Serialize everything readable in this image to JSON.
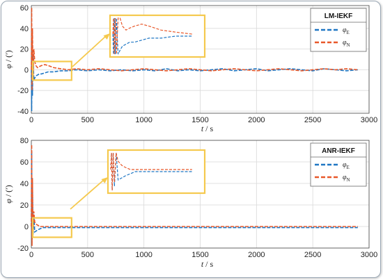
{
  "colors": {
    "E": "#1f77c4",
    "N": "#e8582a",
    "zoom_box": "#f5c94e",
    "grid": "#d9d9d9",
    "axis": "#444444"
  },
  "chart_data": [
    {
      "type": "line",
      "legend_title": "LM-IEKF",
      "legend_position": "top-right",
      "xlabel": {
        "symbol": "t",
        "unit": " / s"
      },
      "ylabel": {
        "symbol": "φ",
        "unit": " / (′)"
      },
      "xlim": [
        0,
        3000
      ],
      "ylim": [
        -42,
        62
      ],
      "xticks": [
        "0",
        "500",
        "1000",
        "1500",
        "2000",
        "2500",
        "3000"
      ],
      "yticks": [
        "-40",
        "-20",
        "0",
        "20",
        "40",
        "60"
      ],
      "grid": true,
      "series": [
        {
          "name": "φE",
          "sym": "φ",
          "sub": "E",
          "x": [
            0,
            3,
            6,
            10,
            15,
            22,
            30,
            40,
            55,
            70,
            90,
            120,
            150,
            200,
            260,
            330,
            400,
            500,
            600,
            700,
            800,
            900,
            1000,
            1100,
            1200,
            1300,
            1400,
            1500,
            1600,
            1700,
            1800,
            1900,
            2000,
            2100,
            2200,
            2300,
            2400,
            2500,
            2600,
            2700,
            2800,
            2900
          ],
          "values": [
            0,
            -40,
            30,
            -25,
            15,
            -10,
            -8,
            -6,
            -5,
            -4,
            -4,
            -3,
            -2,
            -2,
            -1,
            -1,
            0,
            -1,
            0,
            -1,
            0,
            -1,
            0,
            -1,
            1,
            -1,
            0,
            -1,
            0,
            1,
            -1,
            0,
            1,
            -1,
            0,
            1,
            0,
            -1,
            1,
            0,
            -1,
            0
          ]
        },
        {
          "name": "φN",
          "sym": "φ",
          "sub": "N",
          "x": [
            0,
            3,
            6,
            10,
            15,
            22,
            30,
            40,
            55,
            70,
            90,
            120,
            150,
            200,
            260,
            330,
            400,
            500,
            600,
            700,
            800,
            900,
            1000,
            1100,
            1200,
            1300,
            1400,
            1500,
            1600,
            1700,
            1800,
            1900,
            2000,
            2100,
            2200,
            2300,
            2400,
            2500,
            2600,
            2700,
            2800,
            2900
          ],
          "values": [
            0,
            60,
            -20,
            40,
            -10,
            20,
            8,
            4,
            2,
            3,
            4,
            5,
            4,
            2,
            1,
            0,
            1,
            0,
            1,
            0,
            -1,
            0,
            1,
            0,
            -1,
            0,
            1,
            0,
            -1,
            0,
            1,
            0,
            -1,
            0,
            1,
            0,
            -1,
            0,
            1,
            0,
            1,
            0
          ]
        }
      ],
      "annotations": {
        "zoom_region": {
          "x": [
            0,
            370
          ],
          "y": [
            -10,
            8
          ]
        },
        "inset_window": {
          "x": [
            0,
            370
          ],
          "y": [
            -10,
            8
          ]
        }
      }
    },
    {
      "type": "line",
      "legend_title": "ANR-IEKF",
      "legend_position": "top-right",
      "xlabel": {
        "symbol": "t",
        "unit": " / s"
      },
      "ylabel": {
        "symbol": "φ",
        "unit": " / (′)"
      },
      "xlim": [
        0,
        3000
      ],
      "ylim": [
        -20,
        80
      ],
      "xticks": [
        "0",
        "500",
        "1000",
        "1500",
        "2000",
        "2500",
        "3000"
      ],
      "yticks": [
        "-20",
        "0",
        "20",
        "40",
        "60",
        "80"
      ],
      "grid": true,
      "series": [
        {
          "name": "φE",
          "sym": "φ",
          "sub": "E",
          "x": [
            0,
            3,
            6,
            10,
            15,
            22,
            30,
            45,
            60,
            80,
            100,
            130,
            160,
            200,
            260,
            330,
            400,
            600,
            1000,
            1500,
            2000,
            2500,
            2900
          ],
          "values": [
            0,
            70,
            -12,
            40,
            -8,
            10,
            -5,
            -4,
            -3,
            -2,
            -1,
            -1,
            -1,
            -1,
            -1,
            -1,
            -1,
            -1,
            -1,
            -1,
            -1,
            -1,
            -1
          ]
        },
        {
          "name": "φN",
          "sym": "φ",
          "sub": "N",
          "x": [
            0,
            3,
            6,
            10,
            15,
            22,
            30,
            45,
            60,
            80,
            100,
            130,
            160,
            200,
            260,
            330,
            400,
            600,
            1000,
            1500,
            2000,
            2500,
            2900
          ],
          "values": [
            0,
            76,
            -18,
            45,
            -6,
            14,
            4,
            2,
            1,
            0,
            0,
            0,
            0,
            0,
            0,
            0,
            0,
            0,
            0,
            0,
            0,
            0,
            0
          ]
        }
      ],
      "annotations": {
        "zoom_region": {
          "x": [
            0,
            370
          ],
          "y": [
            -10,
            8
          ]
        },
        "inset_window": {
          "x": [
            0,
            370
          ],
          "y": [
            -10,
            8
          ]
        }
      }
    }
  ]
}
